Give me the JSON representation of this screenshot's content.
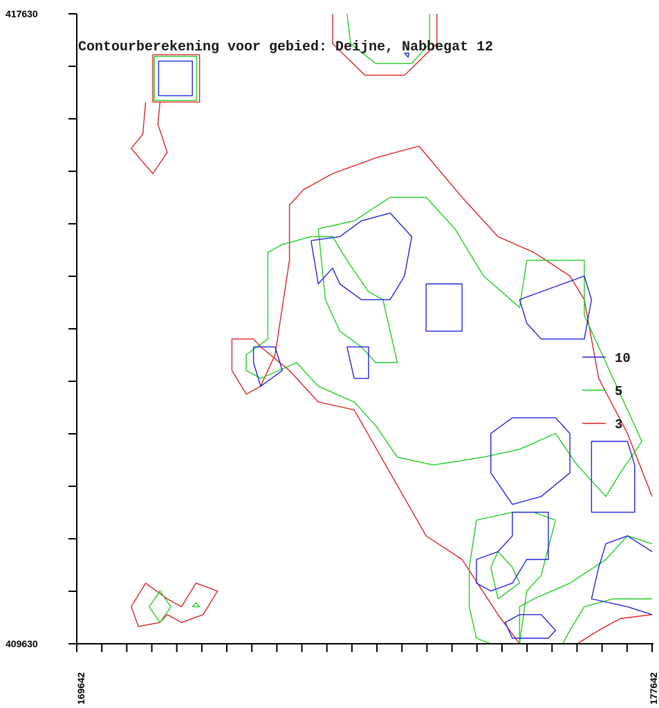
{
  "chart_data": {
    "type": "contour",
    "title": "Contourberekening voor gebied: Deijne, Nabbegat 12",
    "x_axis": {
      "min": 169642,
      "max": 177642,
      "tick_labels": [
        "169642",
        "177642"
      ],
      "minor_ticks": 23
    },
    "y_axis": {
      "min": 409630,
      "max": 417630,
      "tick_labels": [
        "417630",
        "409630"
      ],
      "minor_ticks": 11
    },
    "grid": false,
    "legend": {
      "placement": "right",
      "entries": [
        {
          "label": "10",
          "color": "#2222dd"
        },
        {
          "label": "5",
          "color": "#22cc22"
        },
        {
          "label": "3",
          "color": "#dd2222"
        }
      ]
    },
    "contours": [
      {
        "level": 3,
        "color": "#dd2222",
        "points": [
          [
            173200,
            417630
          ],
          [
            173200,
            417250
          ],
          [
            173650,
            416850
          ],
          [
            174200,
            416850
          ],
          [
            174650,
            417250
          ],
          [
            174650,
            417630
          ]
        ]
      },
      {
        "level": 5,
        "color": "#22cc22",
        "points": [
          [
            173400,
            417630
          ],
          [
            173450,
            417250
          ],
          [
            173800,
            417000
          ],
          [
            174300,
            417000
          ],
          [
            174550,
            417250
          ],
          [
            174550,
            417630
          ]
        ]
      },
      {
        "level": 10,
        "color": "#2222dd",
        "points": [
          [
            174200,
            417130
          ],
          [
            174250,
            417080
          ],
          [
            174260,
            417130
          ],
          [
            174200,
            417130
          ]
        ]
      },
      {
        "level": 3,
        "color": "#dd2222",
        "points": [
          [
            170700,
            417110
          ],
          [
            171350,
            417110
          ],
          [
            171350,
            416510
          ],
          [
            170700,
            416510
          ],
          [
            170700,
            417110
          ]
        ]
      },
      {
        "level": 5,
        "color": "#22cc22",
        "points": [
          [
            170720,
            417090
          ],
          [
            171310,
            417090
          ],
          [
            171310,
            416530
          ],
          [
            170720,
            416530
          ],
          [
            170720,
            417090
          ]
        ]
      },
      {
        "level": 10,
        "color": "#2222dd",
        "points": [
          [
            170780,
            417030
          ],
          [
            171250,
            417030
          ],
          [
            171250,
            416590
          ],
          [
            170780,
            416590
          ],
          [
            170780,
            417030
          ]
        ]
      },
      {
        "level": 3,
        "color": "#dd2222",
        "points": [
          [
            170600,
            416510
          ],
          [
            170560,
            416100
          ],
          [
            170400,
            415920
          ],
          [
            170700,
            415600
          ],
          [
            170900,
            415870
          ],
          [
            170770,
            416230
          ],
          [
            170800,
            416510
          ]
        ]
      },
      {
        "level": 3,
        "color": "#dd2222",
        "points": [
          [
            177642,
            411500
          ],
          [
            177300,
            412300
          ],
          [
            176900,
            413000
          ],
          [
            176700,
            414000
          ],
          [
            176500,
            414300
          ],
          [
            176000,
            414600
          ],
          [
            175500,
            414800
          ],
          [
            175000,
            415300
          ],
          [
            174400,
            415950
          ],
          [
            173800,
            415800
          ],
          [
            173200,
            415600
          ],
          [
            172800,
            415400
          ],
          [
            172600,
            415200
          ],
          [
            172600,
            414500
          ],
          [
            172400,
            413300
          ],
          [
            172200,
            412900
          ],
          [
            172000,
            412800
          ],
          [
            171800,
            413100
          ],
          [
            171800,
            413500
          ],
          [
            172100,
            413500
          ],
          [
            172200,
            413400
          ],
          [
            172600,
            413100
          ],
          [
            173000,
            412700
          ],
          [
            173500,
            412600
          ],
          [
            174000,
            411800
          ],
          [
            174500,
            411000
          ],
          [
            175000,
            410700
          ],
          [
            175500,
            410000
          ],
          [
            175800,
            409630
          ]
        ]
      },
      {
        "level": 5,
        "color": "#22cc22",
        "points": [
          [
            177642,
            410900
          ],
          [
            177300,
            411000
          ],
          [
            177000,
            410700
          ],
          [
            176500,
            410400
          ],
          [
            176000,
            410200
          ],
          [
            175800,
            410100
          ],
          [
            175800,
            409630
          ]
        ]
      },
      {
        "level": 5,
        "color": "#22cc22",
        "points": [
          [
            177642,
            410200
          ],
          [
            177100,
            410200
          ],
          [
            176700,
            410100
          ],
          [
            176500,
            409800
          ],
          [
            176400,
            409630
          ]
        ]
      },
      {
        "level": 3,
        "color": "#dd2222",
        "points": [
          [
            177642,
            410000
          ],
          [
            177200,
            409950
          ],
          [
            176900,
            409800
          ],
          [
            176600,
            409630
          ]
        ]
      },
      {
        "level": 5,
        "color": "#22cc22",
        "points": [
          [
            173000,
            414900
          ],
          [
            173500,
            415000
          ],
          [
            174000,
            415300
          ],
          [
            174500,
            415300
          ],
          [
            174900,
            414900
          ],
          [
            175300,
            414300
          ],
          [
            175800,
            413900
          ],
          [
            175900,
            414500
          ],
          [
            176700,
            414500
          ],
          [
            176700,
            413800
          ],
          [
            177000,
            413200
          ],
          [
            177200,
            412800
          ],
          [
            177500,
            412200
          ],
          [
            177200,
            411800
          ],
          [
            177000,
            411500
          ],
          [
            176600,
            411900
          ],
          [
            176300,
            412300
          ],
          [
            175800,
            412100
          ],
          [
            175300,
            412000
          ],
          [
            174600,
            411900
          ],
          [
            174100,
            412000
          ],
          [
            173800,
            412400
          ],
          [
            173500,
            412700
          ],
          [
            173000,
            412900
          ],
          [
            172700,
            413200
          ],
          [
            172200,
            413000
          ],
          [
            172000,
            413100
          ],
          [
            172000,
            413300
          ],
          [
            172300,
            413500
          ],
          [
            172300,
            414600
          ],
          [
            172500,
            414700
          ],
          [
            172900,
            414800
          ],
          [
            173200,
            414800
          ],
          [
            173400,
            414500
          ],
          [
            173700,
            414100
          ],
          [
            173900,
            414000
          ],
          [
            174000,
            413600
          ],
          [
            174100,
            413200
          ],
          [
            173800,
            413200
          ],
          [
            173600,
            413400
          ],
          [
            173300,
            413600
          ],
          [
            173100,
            414000
          ],
          [
            173000,
            414900
          ]
        ]
      },
      {
        "level": 5,
        "color": "#22cc22",
        "points": [
          [
            176300,
            411200
          ],
          [
            176000,
            411300
          ],
          [
            175700,
            411300
          ],
          [
            175200,
            411200
          ],
          [
            175100,
            410600
          ],
          [
            175100,
            410100
          ],
          [
            175200,
            409700
          ],
          [
            175400,
            409630
          ],
          [
            175800,
            409630
          ],
          [
            175900,
            410300
          ],
          [
            176100,
            410500
          ],
          [
            176300,
            411200
          ]
        ]
      },
      {
        "level": 5,
        "color": "#22cc22",
        "points": [
          [
            175500,
            410800
          ],
          [
            175700,
            410600
          ],
          [
            175800,
            410400
          ],
          [
            175500,
            410200
          ],
          [
            175400,
            410600
          ],
          [
            175500,
            410800
          ]
        ]
      },
      {
        "level": 10,
        "color": "#2222dd",
        "points": [
          [
            172900,
            414750
          ],
          [
            173300,
            414800
          ],
          [
            173600,
            415000
          ],
          [
            174000,
            415100
          ],
          [
            174300,
            414800
          ],
          [
            174200,
            414300
          ],
          [
            174000,
            414000
          ],
          [
            173600,
            414000
          ],
          [
            173300,
            414200
          ],
          [
            173200,
            414400
          ],
          [
            173000,
            414200
          ],
          [
            172900,
            414750
          ]
        ]
      },
      {
        "level": 10,
        "color": "#2222dd",
        "points": [
          [
            174500,
            414200
          ],
          [
            175000,
            414200
          ],
          [
            175000,
            413600
          ],
          [
            174500,
            413600
          ],
          [
            174500,
            414200
          ]
        ]
      },
      {
        "level": 10,
        "color": "#2222dd",
        "points": [
          [
            175800,
            414000
          ],
          [
            176100,
            414100
          ],
          [
            176700,
            414300
          ],
          [
            176800,
            414000
          ],
          [
            176700,
            413500
          ],
          [
            176100,
            413500
          ],
          [
            175900,
            413700
          ],
          [
            175800,
            414000
          ]
        ]
      },
      {
        "level": 10,
        "color": "#2222dd",
        "points": [
          [
            172100,
            413400
          ],
          [
            172400,
            413400
          ],
          [
            172500,
            413100
          ],
          [
            172200,
            412900
          ],
          [
            172100,
            413200
          ],
          [
            172100,
            413400
          ]
        ]
      },
      {
        "level": 10,
        "color": "#2222dd",
        "points": [
          [
            173400,
            413400
          ],
          [
            173700,
            413400
          ],
          [
            173700,
            413000
          ],
          [
            173500,
            413000
          ],
          [
            173400,
            413400
          ]
        ]
      },
      {
        "level": 10,
        "color": "#2222dd",
        "points": [
          [
            175400,
            412300
          ],
          [
            175700,
            412500
          ],
          [
            176300,
            412500
          ],
          [
            176500,
            412300
          ],
          [
            176500,
            411800
          ],
          [
            176100,
            411500
          ],
          [
            175700,
            411400
          ],
          [
            175400,
            411800
          ],
          [
            175400,
            412300
          ]
        ]
      },
      {
        "level": 10,
        "color": "#2222dd",
        "points": [
          [
            176800,
            412200
          ],
          [
            177300,
            412200
          ],
          [
            177400,
            411900
          ],
          [
            177400,
            411300
          ],
          [
            176800,
            411300
          ],
          [
            176800,
            412200
          ]
        ]
      },
      {
        "level": 10,
        "color": "#2222dd",
        "points": [
          [
            175700,
            411300
          ],
          [
            176200,
            411300
          ],
          [
            176200,
            410700
          ],
          [
            175900,
            410700
          ],
          [
            175700,
            410400
          ],
          [
            175400,
            410300
          ],
          [
            175200,
            410400
          ],
          [
            175200,
            410700
          ],
          [
            175500,
            410800
          ],
          [
            175700,
            411000
          ],
          [
            175700,
            411300
          ]
        ]
      },
      {
        "level": 10,
        "color": "#2222dd",
        "points": [
          [
            177642,
            410800
          ],
          [
            177300,
            411000
          ],
          [
            177000,
            410900
          ],
          [
            176900,
            410600
          ],
          [
            176800,
            410200
          ],
          [
            177300,
            410100
          ],
          [
            177642,
            410000
          ]
        ]
      },
      {
        "level": 10,
        "color": "#2222dd",
        "points": [
          [
            175800,
            410000
          ],
          [
            176100,
            410000
          ],
          [
            176300,
            409800
          ],
          [
            176200,
            409700
          ],
          [
            175700,
            409700
          ],
          [
            175600,
            409900
          ],
          [
            175800,
            410000
          ]
        ]
      },
      {
        "level": 3,
        "color": "#dd2222",
        "points": [
          [
            170400,
            410100
          ],
          [
            170600,
            410400
          ],
          [
            170900,
            410200
          ],
          [
            171100,
            410100
          ],
          [
            171300,
            410400
          ],
          [
            171600,
            410300
          ],
          [
            171400,
            410000
          ],
          [
            171100,
            409900
          ],
          [
            170900,
            410000
          ],
          [
            170800,
            409900
          ],
          [
            170500,
            409850
          ],
          [
            170400,
            410100
          ]
        ]
      },
      {
        "level": 5,
        "color": "#22cc22",
        "points": [
          [
            170650,
            410100
          ],
          [
            170800,
            410300
          ],
          [
            170950,
            410100
          ],
          [
            170800,
            409900
          ],
          [
            170650,
            410100
          ]
        ]
      },
      {
        "level": 5,
        "color": "#22cc22",
        "points": [
          [
            171250,
            410100
          ],
          [
            171300,
            410150
          ],
          [
            171350,
            410100
          ],
          [
            171250,
            410100
          ]
        ]
      }
    ]
  }
}
